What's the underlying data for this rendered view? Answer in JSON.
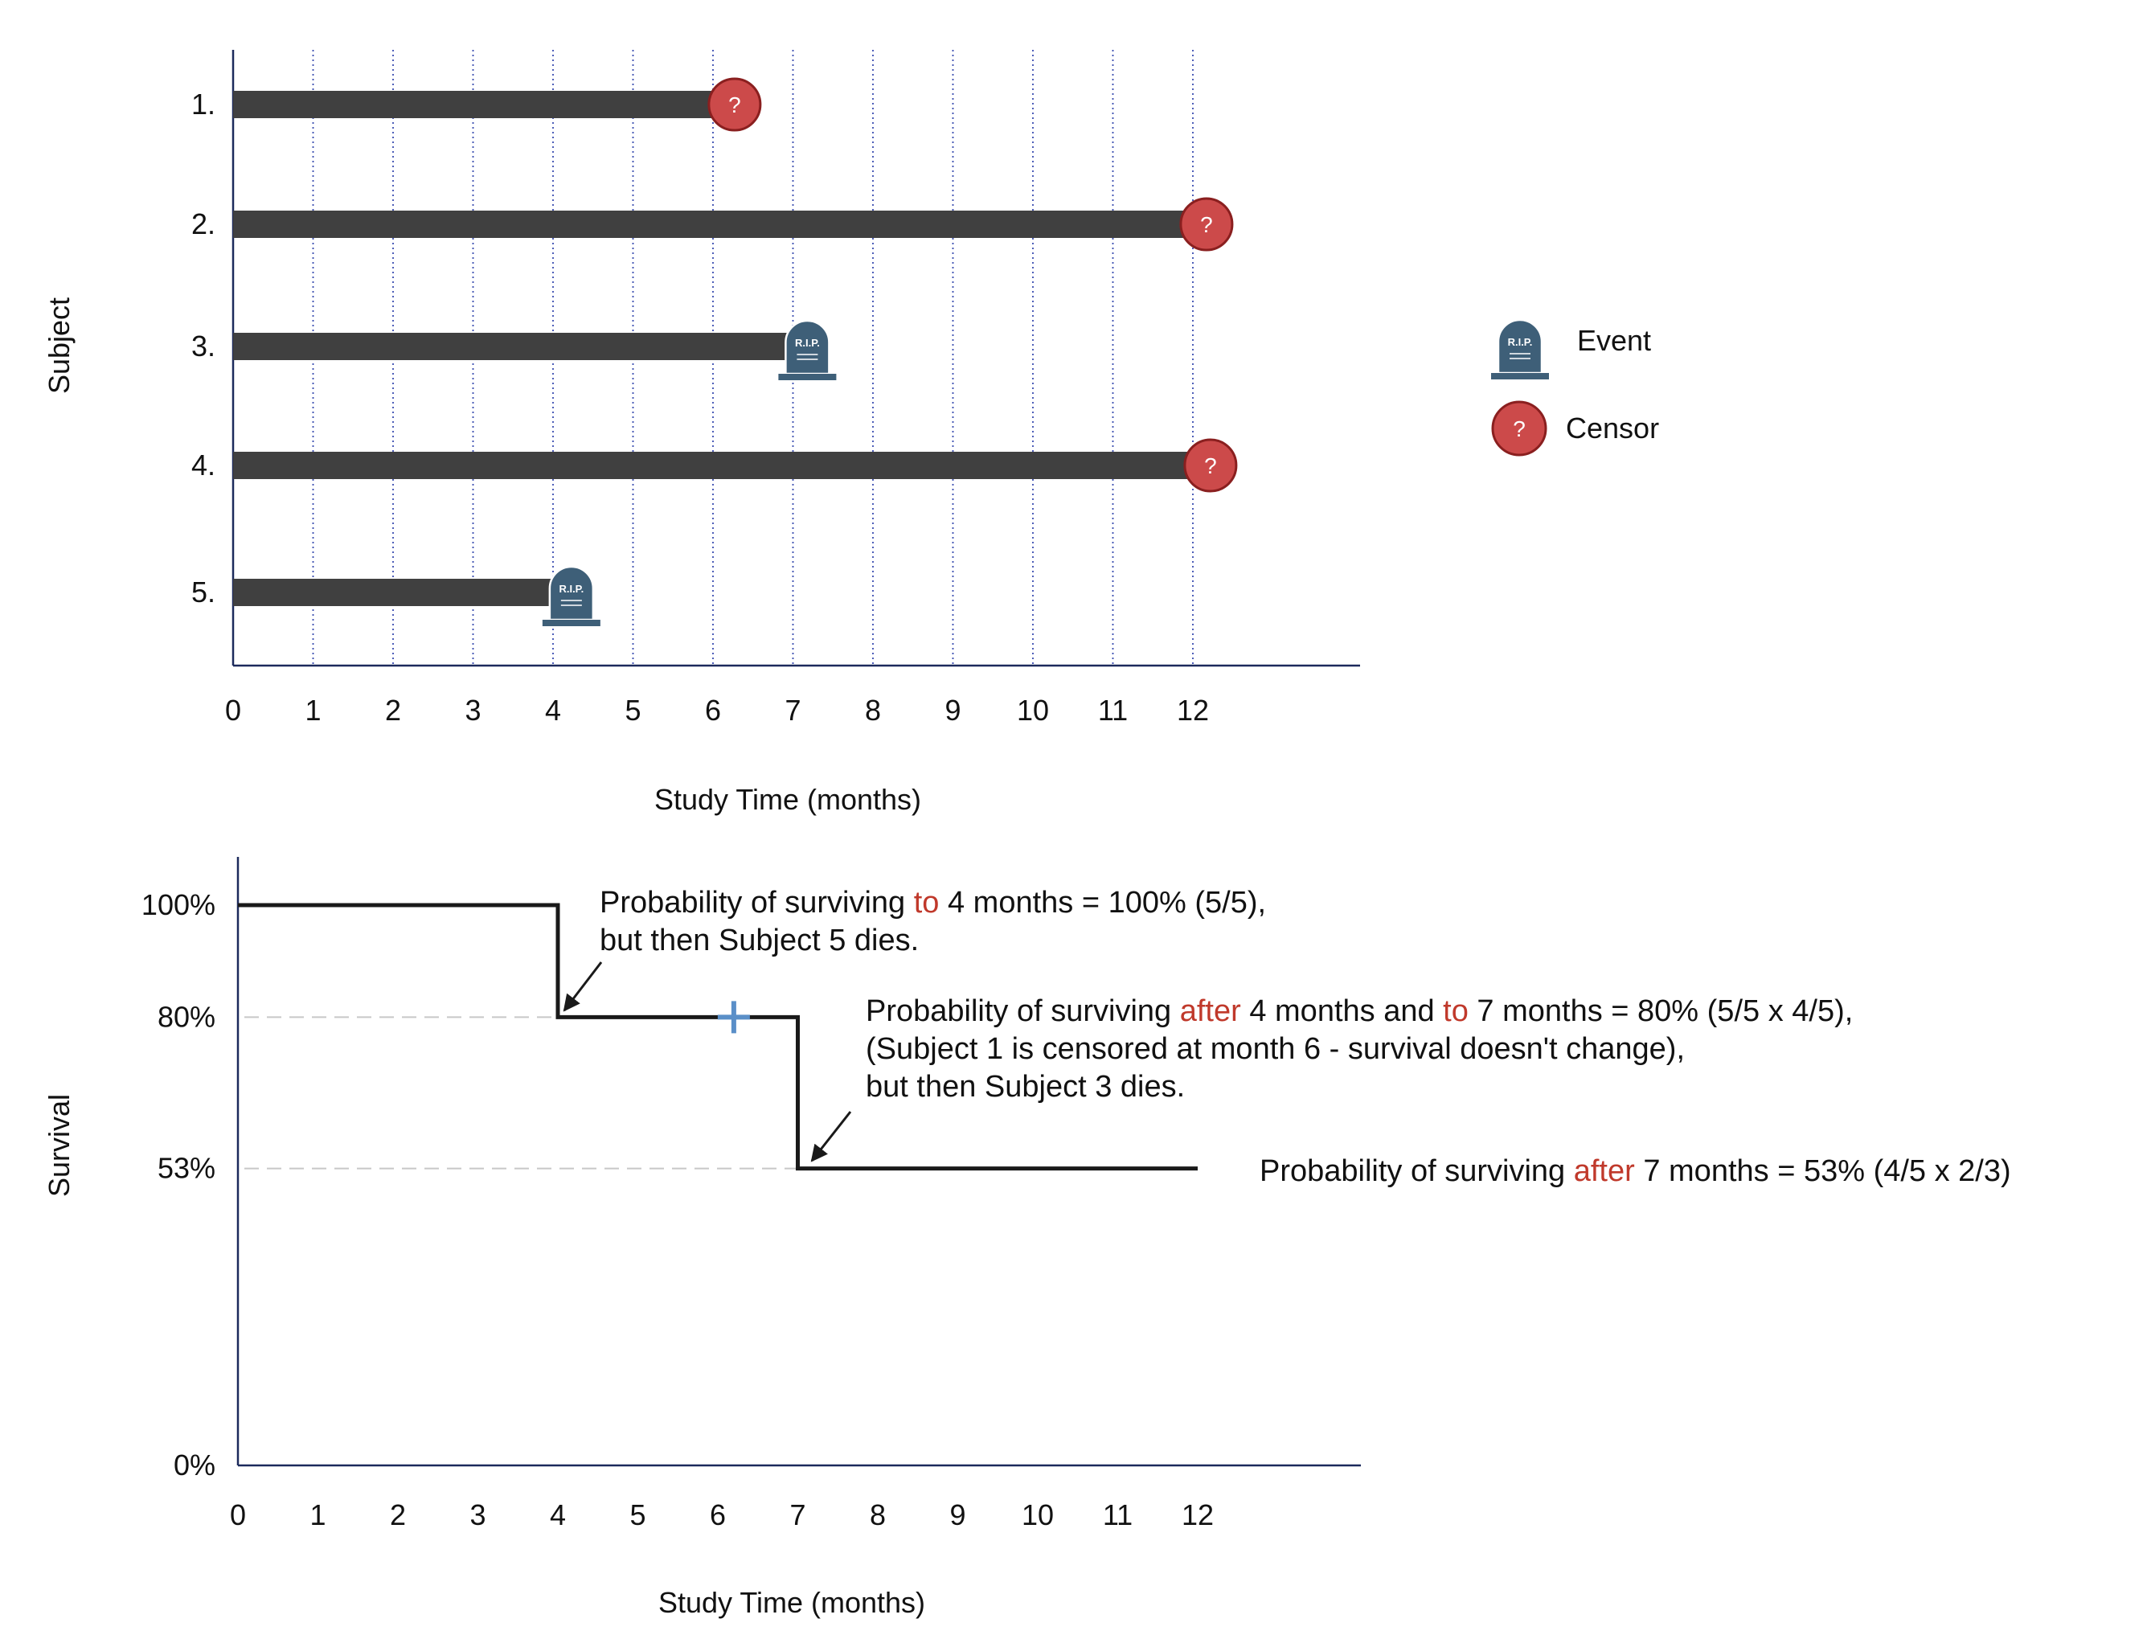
{
  "colors": {
    "bar": "#404040",
    "axis": "#1c2a5c",
    "grid": "#3a4db0",
    "censor_fill": "#cc4a4a",
    "censor_stroke": "#8a1f1f",
    "tomb_fill": "#3e5f78",
    "step_line": "#1a1a1a",
    "highlight": "#c0392b",
    "censor_mark": "#5a8fc8",
    "dashed_ref": "#c8c8c8"
  },
  "chart_data": [
    {
      "type": "bar",
      "kind": "subject-timeline",
      "title": "",
      "xlabel": "Study Time (months)",
      "ylabel": "Subject",
      "xticks": [
        0,
        1,
        2,
        3,
        4,
        5,
        6,
        7,
        8,
        9,
        10,
        11,
        12
      ],
      "xlim": [
        0,
        14
      ],
      "grid": "vertical dotted at each month 1-12",
      "subjects": [
        {
          "label": "1.",
          "end": 6.25,
          "outcome": "censor"
        },
        {
          "label": "2.",
          "end": 12.15,
          "outcome": "censor"
        },
        {
          "label": "3.",
          "end": 7.2,
          "outcome": "event"
        },
        {
          "label": "4.",
          "end": 12.2,
          "outcome": "censor"
        },
        {
          "label": "5.",
          "end": 4.25,
          "outcome": "event"
        }
      ],
      "legend": {
        "placement": "right",
        "entries": [
          {
            "label": "Event",
            "icon": "tombstone-icon"
          },
          {
            "label": "Censor",
            "icon": "question-mark-icon"
          }
        ]
      },
      "tomb_text": "R.I.P.",
      "censor_symbol": "?"
    },
    {
      "type": "line",
      "kind": "kaplan-meier-step",
      "title": "",
      "xlabel": "Study Time (months)",
      "ylabel": "Survival",
      "xticks": [
        0,
        1,
        2,
        3,
        4,
        5,
        6,
        7,
        8,
        9,
        10,
        11,
        12
      ],
      "xlim": [
        0,
        14
      ],
      "ylim": [
        0,
        1.05
      ],
      "yticks": [
        {
          "value": 1.0,
          "label": "100%"
        },
        {
          "value": 0.8,
          "label": "80%"
        },
        {
          "value": 0.53,
          "label": "53%"
        },
        {
          "value": 0.0,
          "label": "0%"
        }
      ],
      "step": [
        {
          "x": 0,
          "y": 1.0
        },
        {
          "x": 4,
          "y": 1.0
        },
        {
          "x": 4,
          "y": 0.8
        },
        {
          "x": 7,
          "y": 0.8
        },
        {
          "x": 7,
          "y": 0.53
        },
        {
          "x": 12,
          "y": 0.53
        }
      ],
      "censor_marks": [
        {
          "x": 6.2,
          "y": 0.8
        }
      ],
      "reference_lines": [
        0.8,
        0.53
      ],
      "annotations": [
        {
          "lines": [
            [
              {
                "t": "Probability of surviving "
              },
              {
                "t": "to",
                "hl": true
              },
              {
                "t": " 4 months = 100% (5/5),"
              }
            ],
            [
              {
                "t": "but then Subject 5 dies."
              }
            ]
          ],
          "arrow_to": {
            "x": 4,
            "y": 0.8
          }
        },
        {
          "lines": [
            [
              {
                "t": "Probability of surviving "
              },
              {
                "t": "after",
                "hl": true
              },
              {
                "t": " 4 months and "
              },
              {
                "t": "to",
                "hl": true
              },
              {
                "t": " 7 months = 80% (5/5 x 4/5),"
              }
            ],
            [
              {
                "t": "(Subject 1 is censored at month 6 - survival doesn't change),"
              }
            ],
            [
              {
                "t": "but then Subject 3 dies."
              }
            ]
          ],
          "arrow_to": {
            "x": 7,
            "y": 0.53
          }
        },
        {
          "lines": [
            [
              {
                "t": "Probability of surviving "
              },
              {
                "t": "after",
                "hl": true
              },
              {
                "t": " 7 months = 53% (4/5 x 2/3)"
              }
            ]
          ],
          "arrow_to": null
        }
      ]
    }
  ]
}
